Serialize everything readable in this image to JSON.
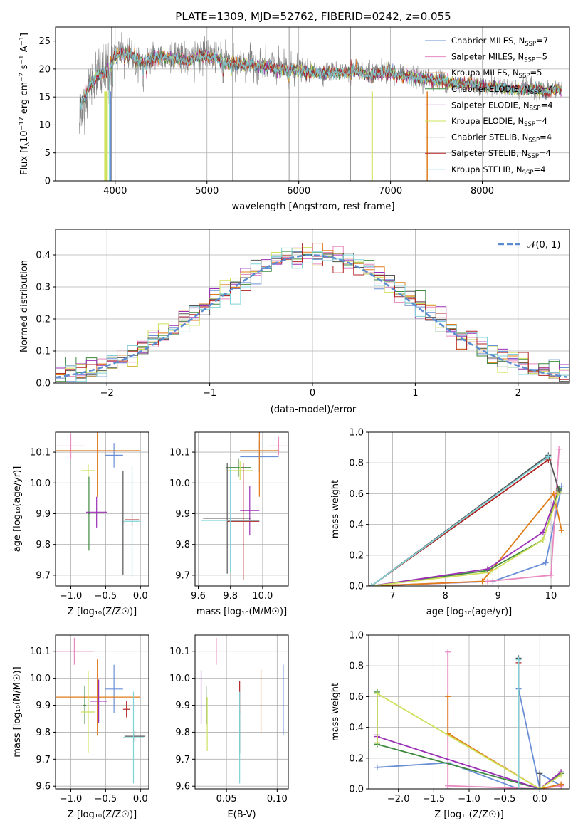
{
  "colors": [
    "#6a8fd6",
    "#e889c0",
    "#e07b1a",
    "#3f8a3f",
    "#9b2fb5",
    "#cfe05a",
    "#555555",
    "#b22222",
    "#7fd3d8"
  ],
  "spectrum": {
    "title": "PLATE=1309, MJD=52762, FIBERID=0242, z=0.055",
    "xlabel": "wavelength [Angstrom, rest frame]",
    "ylabel": "Flux [f",
    "ylabel_sub": "λ",
    "ylabel_rest": "10",
    "ylabel_exp": "−17",
    "ylabel_units": " erg cm",
    "ylabel_units_exp": "−2",
    "ylabel_units2": " s",
    "ylabel_units2_exp": "−1",
    "ylabel_units3": " A",
    "ylabel_units3_exp": "−1",
    "ylabel_end": "]",
    "xticks": [
      "4000",
      "5000",
      "6000",
      "7000",
      "8000"
    ],
    "yticks": [
      "0",
      "5",
      "10",
      "15",
      "20",
      "25"
    ],
    "legend": [
      {
        "base": "Chabrier MILES, N",
        "sub": "SSP",
        "tail": "=7"
      },
      {
        "base": "Salpeter MILES, N",
        "sub": "SSP",
        "tail": "=5"
      },
      {
        "base": "Kroupa MILES, N",
        "sub": "SSP",
        "tail": "=5"
      },
      {
        "base": "Chabrier ELODIE, N",
        "sub": "SSP",
        "tail": "=4"
      },
      {
        "base": "Salpeter ELODIE, N",
        "sub": "SSP",
        "tail": "=4"
      },
      {
        "base": "Kroupa ELODIE, N",
        "sub": "SSP",
        "tail": "=4"
      },
      {
        "base": "Chabrier STELIB, N",
        "sub": "SSP",
        "tail": "=4"
      },
      {
        "base": "Salpeter STELIB, N",
        "sub": "SSP",
        "tail": "=4"
      },
      {
        "base": "Kroupa STELIB, N",
        "sub": "SSP",
        "tail": "=4"
      }
    ]
  },
  "residuals": {
    "xlabel": "(data-model)/error",
    "ylabel": "Normed distribution",
    "xticks": [
      "−2",
      "−1",
      "0",
      "1",
      "2"
    ],
    "yticks": [
      "0.0",
      "0.1",
      "0.2",
      "0.3",
      "0.4"
    ],
    "legend": "𝒩(0, 1)"
  },
  "panels": {
    "age_vs_Z": {
      "xlabel": "Z [log₁₀(Z/Z☉)]",
      "ylabel": "age  [log₁₀(age/yr)]",
      "xticks": [
        "−1.0",
        "−0.5",
        "0.0"
      ],
      "yticks": [
        "9.7",
        "9.8",
        "9.9",
        "10.0",
        "10.1"
      ]
    },
    "age_vs_mass": {
      "xlabel": "mass [log₁₀(M/M☉)]",
      "xticks": [
        "9.6",
        "9.8",
        "10.0"
      ],
      "yticks": [
        "9.7",
        "9.8",
        "9.9",
        "10.0",
        "10.1"
      ]
    },
    "mw_vs_age": {
      "xlabel": "age  [log₁₀(age/yr)]",
      "ylabel": "mass weight",
      "xticks": [
        "7",
        "8",
        "9",
        "10"
      ],
      "yticks": [
        "0.0",
        "0.2",
        "0.4",
        "0.6",
        "0.8",
        "1.0"
      ]
    },
    "mass_vs_Z": {
      "xlabel": "Z [log₁₀(Z/Z☉)]",
      "ylabel": "mass [log₁₀(M/M☉)]",
      "xticks": [
        "−1.0",
        "−0.5",
        "0.0"
      ],
      "yticks": [
        "9.6",
        "9.7",
        "9.8",
        "9.9",
        "10.0",
        "10.1"
      ]
    },
    "mass_vs_ebv": {
      "xlabel": "E(B-V)",
      "xticks": [
        "0.05",
        "0.10"
      ],
      "yticks": [
        "9.6",
        "9.7",
        "9.8",
        "9.9",
        "10.0",
        "10.1"
      ]
    },
    "mw_vs_Z": {
      "xlabel": "Z [log₁₀(Z/Z☉)]",
      "ylabel": "mass weight",
      "xticks": [
        "−2.0",
        "−1.5",
        "−1.0",
        "−0.5",
        "0.0"
      ],
      "yticks": [
        "0.0",
        "0.2",
        "0.4",
        "0.6",
        "0.8",
        "1.0"
      ]
    }
  },
  "chart_data": [
    {
      "type": "line",
      "panel": "spectrum",
      "xlim": [
        3350,
        8950
      ],
      "ylim": [
        0,
        27.5
      ],
      "xticks": [
        4000,
        5000,
        6000,
        7000,
        8000
      ],
      "yticks": [
        0,
        5,
        10,
        15,
        20,
        25
      ],
      "envelope": {
        "x": [
          3600,
          3700,
          3800,
          3900,
          4000,
          4100,
          4200,
          4300,
          4400,
          4500,
          4600,
          4700,
          4800,
          4900,
          5000,
          5100,
          5200,
          5300,
          5400,
          5500,
          5600,
          5700,
          5800,
          5900,
          6000,
          6100,
          6200,
          6300,
          6400,
          6500,
          6600,
          6700,
          6800,
          6900,
          7000,
          7100,
          7200,
          7300,
          7400,
          7500,
          7600,
          7700,
          7800,
          7900,
          8000,
          8100,
          8200,
          8300,
          8400,
          8500,
          8600,
          8700,
          8800
        ],
        "y": [
          13.0,
          16.5,
          19.0,
          19.5,
          22.5,
          23.0,
          22.5,
          21.5,
          22.0,
          22.5,
          22.0,
          22.0,
          21.5,
          22.5,
          22.5,
          22.0,
          21.5,
          21.0,
          21.0,
          21.0,
          20.5,
          20.5,
          20.0,
          20.0,
          20.0,
          19.5,
          19.5,
          19.5,
          19.5,
          19.5,
          20.0,
          19.5,
          19.0,
          19.5,
          19.5,
          19.0,
          19.0,
          18.5,
          18.5,
          18.0,
          18.0,
          17.5,
          17.5,
          17.5,
          17.0,
          17.0,
          17.0,
          16.5,
          16.5,
          16.5,
          16.5,
          16.0,
          16.5
        ]
      },
      "series": [
        {
          "name": "Chabrier MILES, NSSP=7"
        },
        {
          "name": "Salpeter MILES, NSSP=5"
        },
        {
          "name": "Kroupa MILES, NSSP=5"
        },
        {
          "name": "Chabrier ELODIE, NSSP=4"
        },
        {
          "name": "Salpeter ELODIE, NSSP=4"
        },
        {
          "name": "Kroupa ELODIE, NSSP=4"
        },
        {
          "name": "Chabrier STELIB, NSSP=4"
        },
        {
          "name": "Salpeter STELIB, NSSP=4"
        },
        {
          "name": "Kroupa STELIB, NSSP=4"
        }
      ],
      "data_spikes": [
        [
          3960,
          0
        ],
        [
          5280,
          0
        ],
        [
          5895,
          0
        ],
        [
          6565,
          0
        ]
      ]
    },
    {
      "type": "bar",
      "panel": "residuals",
      "xlim": [
        -2.5,
        2.5
      ],
      "ylim": [
        0,
        0.48
      ],
      "xticks": [
        -2,
        -1,
        0,
        1,
        2
      ],
      "yticks": [
        0,
        0.1,
        0.2,
        0.3,
        0.4
      ],
      "bin_width": 0.1,
      "reference": "normal(0,1)"
    },
    {
      "type": "scatter",
      "panel": "age_vs_Z",
      "xlim": [
        -1.22,
        0.12
      ],
      "ylim": [
        9.665,
        10.165
      ],
      "points": [
        {
          "x": -0.38,
          "y": 10.09,
          "xe": 0.13,
          "ye": 0.04
        },
        {
          "x": -1.0,
          "y": 10.12,
          "xe": 0.2,
          "ye": 0.04
        },
        {
          "x": -0.62,
          "y": 10.105,
          "xe": 0.62,
          "ye": 0.15
        },
        {
          "x": -0.74,
          "y": 9.9,
          "xe": 0.02,
          "ye": 0.12
        },
        {
          "x": -0.63,
          "y": 9.905,
          "xe": 0.15,
          "ye": 0.05
        },
        {
          "x": -0.75,
          "y": 10.04,
          "xe": 0.1,
          "ye": 0.02
        },
        {
          "x": -0.25,
          "y": 9.87,
          "xe": 0.02,
          "ye": 0.17
        },
        {
          "x": -0.12,
          "y": 9.88,
          "xe": 0.1,
          "ye": 0.02
        },
        {
          "x": -0.12,
          "y": 9.875,
          "xe": 0.12,
          "ye": 0.18
        }
      ]
    },
    {
      "type": "scatter",
      "panel": "age_vs_mass",
      "xlim": [
        9.58,
        10.16
      ],
      "ylim": [
        9.665,
        10.165
      ],
      "points": [
        {
          "x": 9.98,
          "y": 10.085,
          "xe": 0.12,
          "ye": 0.05
        },
        {
          "x": 10.1,
          "y": 10.12,
          "xe": 0.06,
          "ye": 0.03
        },
        {
          "x": 9.98,
          "y": 10.105,
          "xe": 0.12,
          "ye": 0.15
        },
        {
          "x": 9.85,
          "y": 10.05,
          "xe": 0.08,
          "ye": 0.03
        },
        {
          "x": 9.92,
          "y": 9.91,
          "xe": 0.06,
          "ye": 0.08
        },
        {
          "x": 9.86,
          "y": 10.04,
          "xe": 0.08,
          "ye": 0.03
        },
        {
          "x": 9.78,
          "y": 9.885,
          "xe": 0.15,
          "ye": 0.18
        },
        {
          "x": 9.88,
          "y": 9.875,
          "xe": 0.1,
          "ye": 0.19
        },
        {
          "x": 9.8,
          "y": 9.878,
          "xe": 0.18,
          "ye": 0.17
        }
      ]
    },
    {
      "type": "line",
      "panel": "mw_vs_age",
      "xlim": [
        6.55,
        10.35
      ],
      "ylim": [
        0,
        1.0
      ],
      "series": [
        {
          "points": [
            [
              6.6,
              0.0
            ],
            [
              8.9,
              0.03
            ],
            [
              9.9,
              0.15
            ],
            [
              10.2,
              0.65
            ]
          ]
        },
        {
          "points": [
            [
              6.6,
              0.0
            ],
            [
              8.8,
              0.03
            ],
            [
              10.0,
              0.07
            ],
            [
              10.15,
              0.89
            ]
          ]
        },
        {
          "points": [
            [
              6.6,
              0.0
            ],
            [
              8.7,
              0.03
            ],
            [
              10.05,
              0.6
            ],
            [
              10.2,
              0.36
            ]
          ]
        },
        {
          "points": [
            [
              6.6,
              0.0
            ],
            [
              8.8,
              0.1
            ],
            [
              9.85,
              0.3
            ],
            [
              10.15,
              0.63
            ]
          ]
        },
        {
          "points": [
            [
              6.6,
              0.0
            ],
            [
              8.8,
              0.11
            ],
            [
              9.85,
              0.35
            ],
            [
              10.05,
              0.54
            ]
          ]
        },
        {
          "points": [
            [
              6.6,
              0.0
            ],
            [
              8.85,
              0.09
            ],
            [
              9.85,
              0.3
            ],
            [
              10.15,
              0.61
            ]
          ]
        },
        {
          "points": [
            [
              6.6,
              0.0
            ],
            [
              9.95,
              0.85
            ],
            [
              10.15,
              0.62
            ]
          ]
        },
        {
          "points": [
            [
              6.6,
              0.0
            ],
            [
              9.95,
              0.82
            ]
          ]
        },
        {
          "points": [
            [
              6.6,
              0.0
            ],
            [
              9.95,
              0.84
            ]
          ]
        }
      ]
    },
    {
      "type": "scatter",
      "panel": "mass_vs_Z",
      "xlim": [
        -1.22,
        0.12
      ],
      "ylim": [
        9.59,
        10.16
      ],
      "points": [
        {
          "x": -0.38,
          "y": 9.96,
          "xe": 0.13,
          "ye": 0.09
        },
        {
          "x": -0.95,
          "y": 10.1,
          "xe": 0.28,
          "ye": 0.05
        },
        {
          "x": -0.62,
          "y": 9.93,
          "xe": 0.62,
          "ye": 0.14
        },
        {
          "x": -0.8,
          "y": 9.9,
          "xe": 0.02,
          "ye": 0.07
        },
        {
          "x": -0.6,
          "y": 9.915,
          "xe": 0.12,
          "ye": 0.08
        },
        {
          "x": -0.75,
          "y": 9.875,
          "xe": 0.1,
          "ye": 0.15
        },
        {
          "x": -0.08,
          "y": 9.785,
          "xe": 0.15,
          "ye": 0.02
        },
        {
          "x": -0.2,
          "y": 9.885,
          "xe": 0.05,
          "ye": 0.03
        },
        {
          "x": -0.1,
          "y": 9.78,
          "xe": 0.15,
          "ye": 0.17
        }
      ]
    },
    {
      "type": "scatter",
      "panel": "mass_vs_ebv",
      "xlim": [
        0.019,
        0.111
      ],
      "ylim": [
        9.59,
        10.16
      ],
      "points": [
        {
          "x": 0.106,
          "y": 9.92,
          "ye": 0.13
        },
        {
          "x": 0.04,
          "y": 10.1,
          "ye": 0.05
        },
        {
          "x": 0.084,
          "y": 9.915,
          "ye": 0.12
        },
        {
          "x": 0.03,
          "y": 9.9,
          "ye": 0.07
        },
        {
          "x": 0.025,
          "y": 9.93,
          "ye": 0.1
        },
        {
          "x": 0.031,
          "y": 9.83,
          "ye": 0.1
        },
        {
          "x": 0.063,
          "y": 9.8,
          "ye": 0.08
        },
        {
          "x": 0.063,
          "y": 9.93,
          "ye": 0.06
        },
        {
          "x": 0.063,
          "y": 9.78,
          "ye": 0.17
        }
      ]
    },
    {
      "type": "line",
      "panel": "mw_vs_Z",
      "xlim": [
        -2.42,
        0.42
      ],
      "ylim": [
        0,
        1.0
      ],
      "series": [
        {
          "points": [
            [
              -2.3,
              0.14
            ],
            [
              -1.3,
              0.17
            ],
            [
              -0.3,
              0.0
            ],
            [
              -0.3,
              0.65
            ],
            [
              0.0,
              0.0
            ],
            [
              0.0,
              0.1
            ],
            [
              0.3,
              0.02
            ]
          ]
        },
        {
          "points": [
            [
              -1.3,
              0.0
            ],
            [
              -1.3,
              0.89
            ],
            [
              -1.3,
              0.02
            ],
            [
              0.0,
              0.0
            ],
            [
              0.3,
              0.02
            ]
          ]
        },
        {
          "points": [
            [
              -1.3,
              0.36
            ],
            [
              -1.3,
              0.6
            ],
            [
              -1.3,
              0.36
            ],
            [
              0.0,
              0.0
            ],
            [
              0.3,
              0.03
            ]
          ]
        },
        {
          "points": [
            [
              -2.3,
              0.29
            ],
            [
              -2.3,
              0.63
            ],
            [
              -2.3,
              0.29
            ],
            [
              0.0,
              0.0
            ],
            [
              0.3,
              0.1
            ]
          ]
        },
        {
          "points": [
            [
              -2.3,
              0.35
            ],
            [
              -2.3,
              0.34
            ],
            [
              0.0,
              0.0
            ],
            [
              0.3,
              0.11
            ]
          ]
        },
        {
          "points": [
            [
              -2.3,
              0.3
            ],
            [
              -2.3,
              0.62
            ],
            [
              0.0,
              0.0
            ],
            [
              0.3,
              0.09
            ]
          ]
        },
        {
          "points": [
            [
              -0.3,
              0.85
            ],
            [
              -0.3,
              0.0
            ],
            [
              0.0,
              0.0
            ],
            [
              0.0,
              0.1
            ]
          ]
        },
        {
          "points": [
            [
              -0.3,
              0.82
            ],
            [
              -0.3,
              0.0
            ],
            [
              0.0,
              0.0
            ]
          ]
        },
        {
          "points": [
            [
              -0.3,
              0.84
            ],
            [
              -0.3,
              0.0
            ],
            [
              0.0,
              0.0
            ]
          ]
        }
      ]
    }
  ]
}
